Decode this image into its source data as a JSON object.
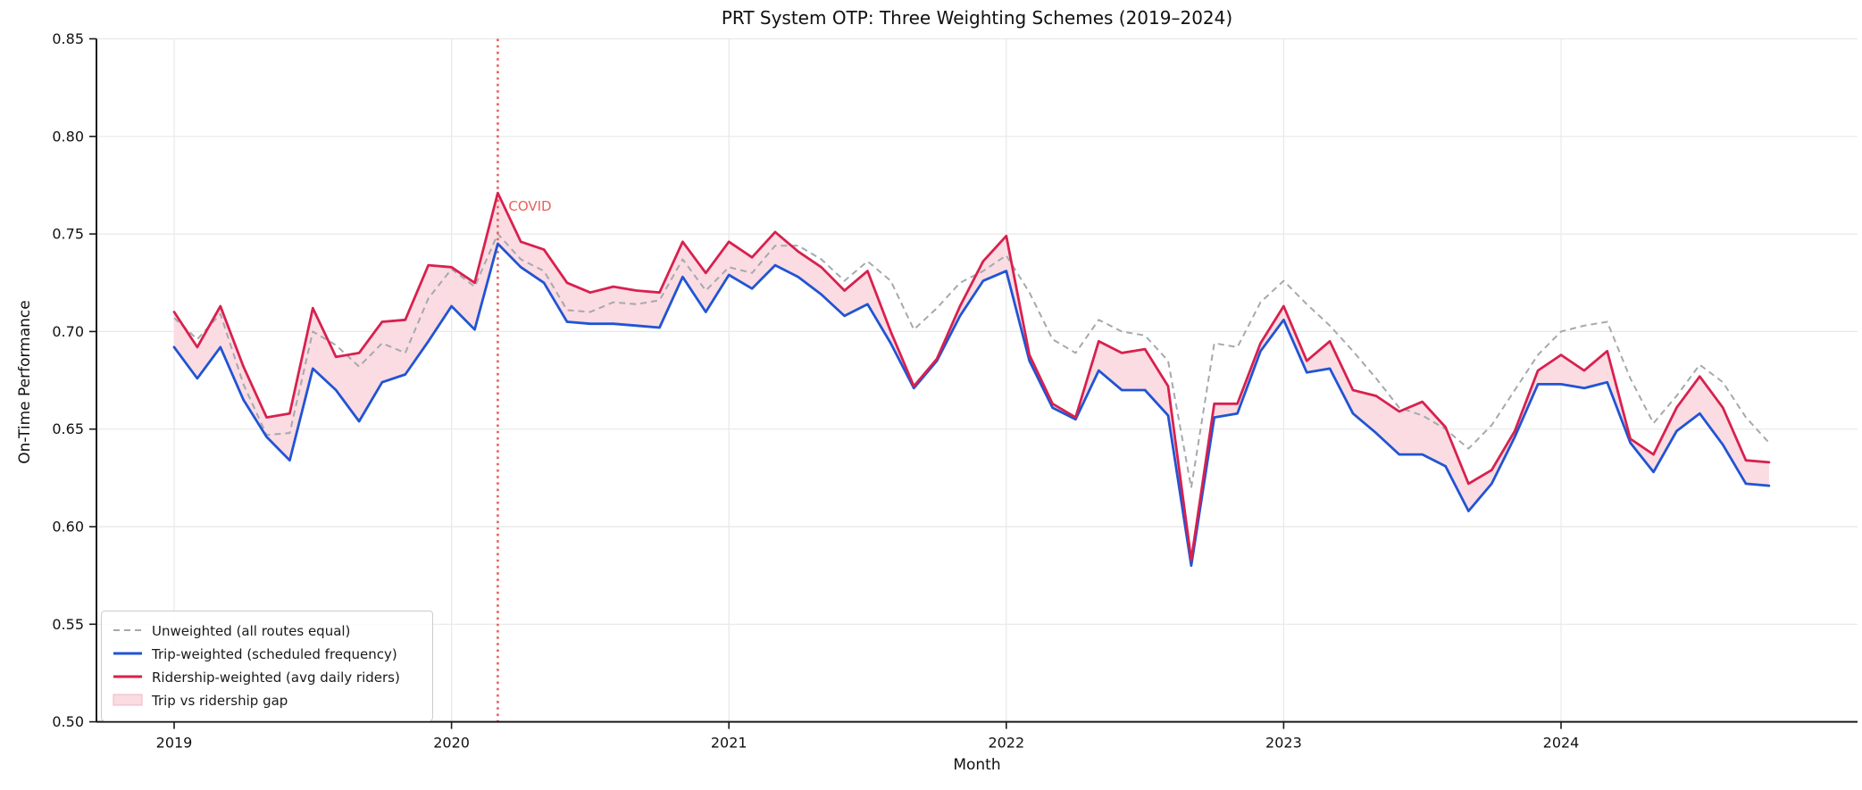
{
  "chart_data": {
    "type": "line",
    "title": "PRT System OTP: Three Weighting Schemes (2019–2024)",
    "xlabel": "Month",
    "ylabel": "On-Time Performance",
    "ylim": [
      0.5,
      0.85
    ],
    "yticks": [
      0.5,
      0.55,
      0.6,
      0.65,
      0.7,
      0.75,
      0.8,
      0.85
    ],
    "xtick_years": [
      "2019",
      "2020",
      "2021",
      "2022",
      "2023",
      "2024"
    ],
    "xtick_month_index": [
      0,
      12,
      24,
      36,
      48,
      60
    ],
    "grid": true,
    "legend_position": "lower left",
    "months": [
      "2019-01",
      "2019-02",
      "2019-03",
      "2019-04",
      "2019-05",
      "2019-06",
      "2019-07",
      "2019-08",
      "2019-09",
      "2019-10",
      "2019-11",
      "2019-12",
      "2020-01",
      "2020-02",
      "2020-03",
      "2020-04",
      "2020-05",
      "2020-06",
      "2020-07",
      "2020-08",
      "2020-09",
      "2020-10",
      "2020-11",
      "2020-12",
      "2021-01",
      "2021-02",
      "2021-03",
      "2021-04",
      "2021-05",
      "2021-06",
      "2021-07",
      "2021-08",
      "2021-09",
      "2021-10",
      "2021-11",
      "2021-12",
      "2022-01",
      "2022-02",
      "2022-03",
      "2022-04",
      "2022-05",
      "2022-06",
      "2022-07",
      "2022-08",
      "2022-09",
      "2022-10",
      "2022-11",
      "2022-12",
      "2023-01",
      "2023-02",
      "2023-03",
      "2023-04",
      "2023-05",
      "2023-06",
      "2023-07",
      "2023-08",
      "2023-09",
      "2023-10",
      "2023-11",
      "2023-12",
      "2024-01",
      "2024-02",
      "2024-03",
      "2024-04",
      "2024-05",
      "2024-06",
      "2024-07",
      "2024-08",
      "2024-09",
      "2024-10"
    ],
    "annotation": {
      "label": "COVID",
      "month_index": 14,
      "color": "#e8605a"
    },
    "series": [
      {
        "id": "unweighted",
        "name": "Unweighted (all routes equal)",
        "style": "dashed",
        "color": "#a5a9ad",
        "values": [
          0.707,
          0.696,
          0.709,
          0.673,
          0.647,
          0.648,
          0.7,
          0.693,
          0.682,
          0.694,
          0.689,
          0.717,
          0.732,
          0.723,
          0.75,
          0.737,
          0.731,
          0.711,
          0.71,
          0.715,
          0.714,
          0.716,
          0.737,
          0.721,
          0.733,
          0.73,
          0.744,
          0.744,
          0.737,
          0.726,
          0.736,
          0.726,
          0.701,
          0.712,
          0.725,
          0.731,
          0.739,
          0.72,
          0.696,
          0.689,
          0.706,
          0.7,
          0.698,
          0.685,
          0.62,
          0.694,
          0.692,
          0.715,
          0.726,
          0.714,
          0.703,
          0.69,
          0.676,
          0.661,
          0.657,
          0.65,
          0.64,
          0.652,
          0.67,
          0.688,
          0.7,
          0.703,
          0.705,
          0.676,
          0.653,
          0.667,
          0.683,
          0.674,
          0.656,
          0.643
        ]
      },
      {
        "id": "trip-weighted",
        "name": "Trip-weighted (scheduled frequency)",
        "style": "solid",
        "color": "#2154d4",
        "values": [
          0.692,
          0.676,
          0.692,
          0.665,
          0.646,
          0.634,
          0.681,
          0.67,
          0.654,
          0.674,
          0.678,
          0.695,
          0.713,
          0.701,
          0.745,
          0.733,
          0.725,
          0.705,
          0.704,
          0.704,
          0.703,
          0.702,
          0.728,
          0.71,
          0.729,
          0.722,
          0.734,
          0.728,
          0.719,
          0.708,
          0.714,
          0.694,
          0.671,
          0.685,
          0.708,
          0.726,
          0.731,
          0.685,
          0.661,
          0.655,
          0.68,
          0.67,
          0.67,
          0.657,
          0.58,
          0.656,
          0.658,
          0.69,
          0.706,
          0.679,
          0.681,
          0.658,
          0.648,
          0.637,
          0.637,
          0.631,
          0.608,
          0.622,
          0.646,
          0.673,
          0.673,
          0.671,
          0.674,
          0.643,
          0.628,
          0.649,
          0.658,
          0.642,
          0.622,
          0.621
        ]
      },
      {
        "id": "ridership-weighted",
        "name": "Ridership-weighted (avg daily riders)",
        "style": "solid",
        "color": "#d9204e",
        "values": [
          0.71,
          0.692,
          0.713,
          0.682,
          0.656,
          0.658,
          0.712,
          0.687,
          0.689,
          0.705,
          0.706,
          0.734,
          0.733,
          0.725,
          0.771,
          0.746,
          0.742,
          0.725,
          0.72,
          0.723,
          0.721,
          0.72,
          0.746,
          0.73,
          0.746,
          0.738,
          0.751,
          0.741,
          0.733,
          0.721,
          0.731,
          0.7,
          0.672,
          0.686,
          0.713,
          0.736,
          0.749,
          0.688,
          0.663,
          0.656,
          0.695,
          0.689,
          0.691,
          0.672,
          0.583,
          0.663,
          0.663,
          0.694,
          0.713,
          0.685,
          0.695,
          0.67,
          0.667,
          0.659,
          0.664,
          0.651,
          0.622,
          0.629,
          0.649,
          0.68,
          0.688,
          0.68,
          0.69,
          0.645,
          0.637,
          0.661,
          0.677,
          0.661,
          0.634,
          0.633
        ]
      }
    ],
    "fill_between": {
      "name": "Trip vs ridership gap",
      "upper": "ridership-weighted",
      "lower": "trip-weighted",
      "color": "#fadce2",
      "edge_color": "#f0b6c4"
    },
    "colors": {
      "grid": "#e8e8e8",
      "spine": "#1a1a1a",
      "tick_text": "#111111"
    }
  }
}
